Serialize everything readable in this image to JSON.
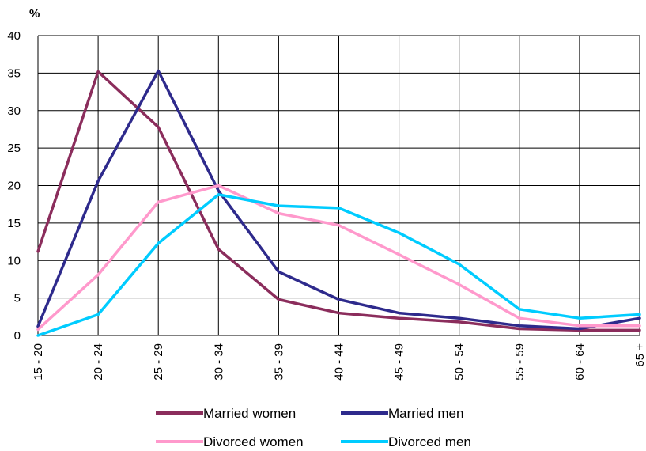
{
  "chart_data": {
    "type": "line",
    "unit_label": "%",
    "title": "",
    "xlabel": "",
    "ylabel": "%",
    "categories": [
      "15 - 20",
      "20 - 24",
      "25 - 29",
      "30 - 34",
      "35 - 39",
      "40 - 44",
      "45 - 49",
      "50 - 54",
      "55 - 59",
      "60 - 64",
      "65 +"
    ],
    "ylim": [
      0,
      40
    ],
    "yticks": [
      "0",
      "5",
      "10",
      "15",
      "20",
      "25",
      "30",
      "35",
      "40"
    ],
    "grid": true,
    "legend_position": "bottom",
    "series": [
      {
        "name": "Married women",
        "color": "#8B2D5C",
        "values": [
          11.2,
          35.2,
          27.8,
          11.5,
          4.8,
          3.0,
          2.3,
          1.8,
          0.9,
          0.7,
          0.7
        ]
      },
      {
        "name": "Married men",
        "color": "#2E2A8C",
        "values": [
          1.2,
          20.6,
          35.3,
          19.3,
          8.5,
          4.8,
          3.0,
          2.3,
          1.3,
          0.9,
          2.3
        ]
      },
      {
        "name": "Divorced women",
        "color": "#FF99CC",
        "values": [
          0.8,
          8.1,
          17.8,
          20.0,
          16.3,
          14.7,
          10.8,
          6.8,
          2.3,
          1.3,
          1.3
        ]
      },
      {
        "name": "Divorced men",
        "color": "#00CCFF",
        "values": [
          0.0,
          2.8,
          12.3,
          18.8,
          17.3,
          17.0,
          13.7,
          9.5,
          3.5,
          2.3,
          2.8
        ]
      }
    ]
  }
}
